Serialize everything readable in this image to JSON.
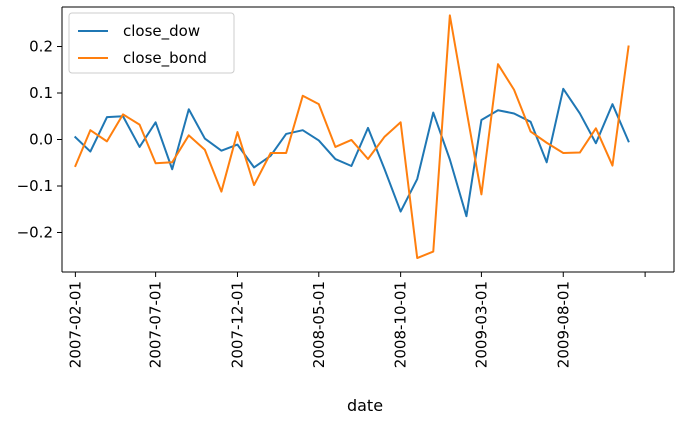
{
  "chart_data": {
    "type": "line",
    "title": "",
    "xlabel": "date",
    "ylabel": "",
    "x_tick_labels": [
      "2007-02-01",
      "2007-07-01",
      "2007-12-01",
      "2008-05-01",
      "2008-10-01",
      "2009-03-01",
      "2009-08-01"
    ],
    "y_ticks": [
      -0.2,
      -0.1,
      0.0,
      0.1,
      0.2
    ],
    "y_tick_labels": [
      "−0.2",
      "−0.1",
      "0.0",
      "0.1",
      "0.2"
    ],
    "ylim": [
      -0.285,
      0.285
    ],
    "xlim": [
      "2007-01-07",
      "2010-02-24"
    ],
    "grid": false,
    "legend_position": "top-left",
    "x": [
      "2007-02-01",
      "2007-03-01",
      "2007-04-01",
      "2007-05-01",
      "2007-06-01",
      "2007-07-01",
      "2007-08-01",
      "2007-09-01",
      "2007-10-01",
      "2007-11-01",
      "2007-12-01",
      "2008-01-01",
      "2008-02-01",
      "2008-03-01",
      "2008-04-01",
      "2008-05-01",
      "2008-06-01",
      "2008-07-01",
      "2008-08-01",
      "2008-09-01",
      "2008-10-01",
      "2008-11-01",
      "2008-12-01",
      "2009-01-01",
      "2009-02-01",
      "2009-03-01",
      "2009-04-01",
      "2009-05-01",
      "2009-06-01",
      "2009-07-01",
      "2009-08-01",
      "2009-09-01",
      "2009-10-01",
      "2009-11-01",
      "2009-12-01"
    ],
    "series": [
      {
        "name": "close_dow",
        "color": "#1f77b4",
        "values": [
          0.005,
          -0.026,
          0.048,
          0.05,
          -0.016,
          0.037,
          -0.064,
          0.065,
          0.002,
          -0.024,
          -0.011,
          -0.06,
          -0.035,
          0.012,
          0.02,
          -0.002,
          -0.042,
          -0.057,
          0.025,
          -0.064,
          -0.155,
          -0.085,
          0.058,
          -0.043,
          -0.165,
          0.042,
          0.063,
          0.056,
          0.038,
          -0.049,
          0.109,
          0.056,
          -0.008,
          0.076,
          -0.004
        ]
      },
      {
        "name": "close_bond",
        "color": "#ff7f0e",
        "values": [
          -0.057,
          0.02,
          -0.004,
          0.054,
          0.032,
          -0.051,
          -0.049,
          0.009,
          -0.022,
          -0.112,
          0.016,
          -0.098,
          -0.029,
          -0.029,
          0.094,
          0.076,
          -0.016,
          -0.001,
          -0.042,
          0.006,
          0.037,
          -0.255,
          -0.241,
          0.267,
          0.063,
          -0.118,
          0.162,
          0.107,
          0.017,
          -0.007,
          -0.029,
          -0.028,
          0.024,
          -0.056,
          0.2
        ]
      }
    ]
  }
}
